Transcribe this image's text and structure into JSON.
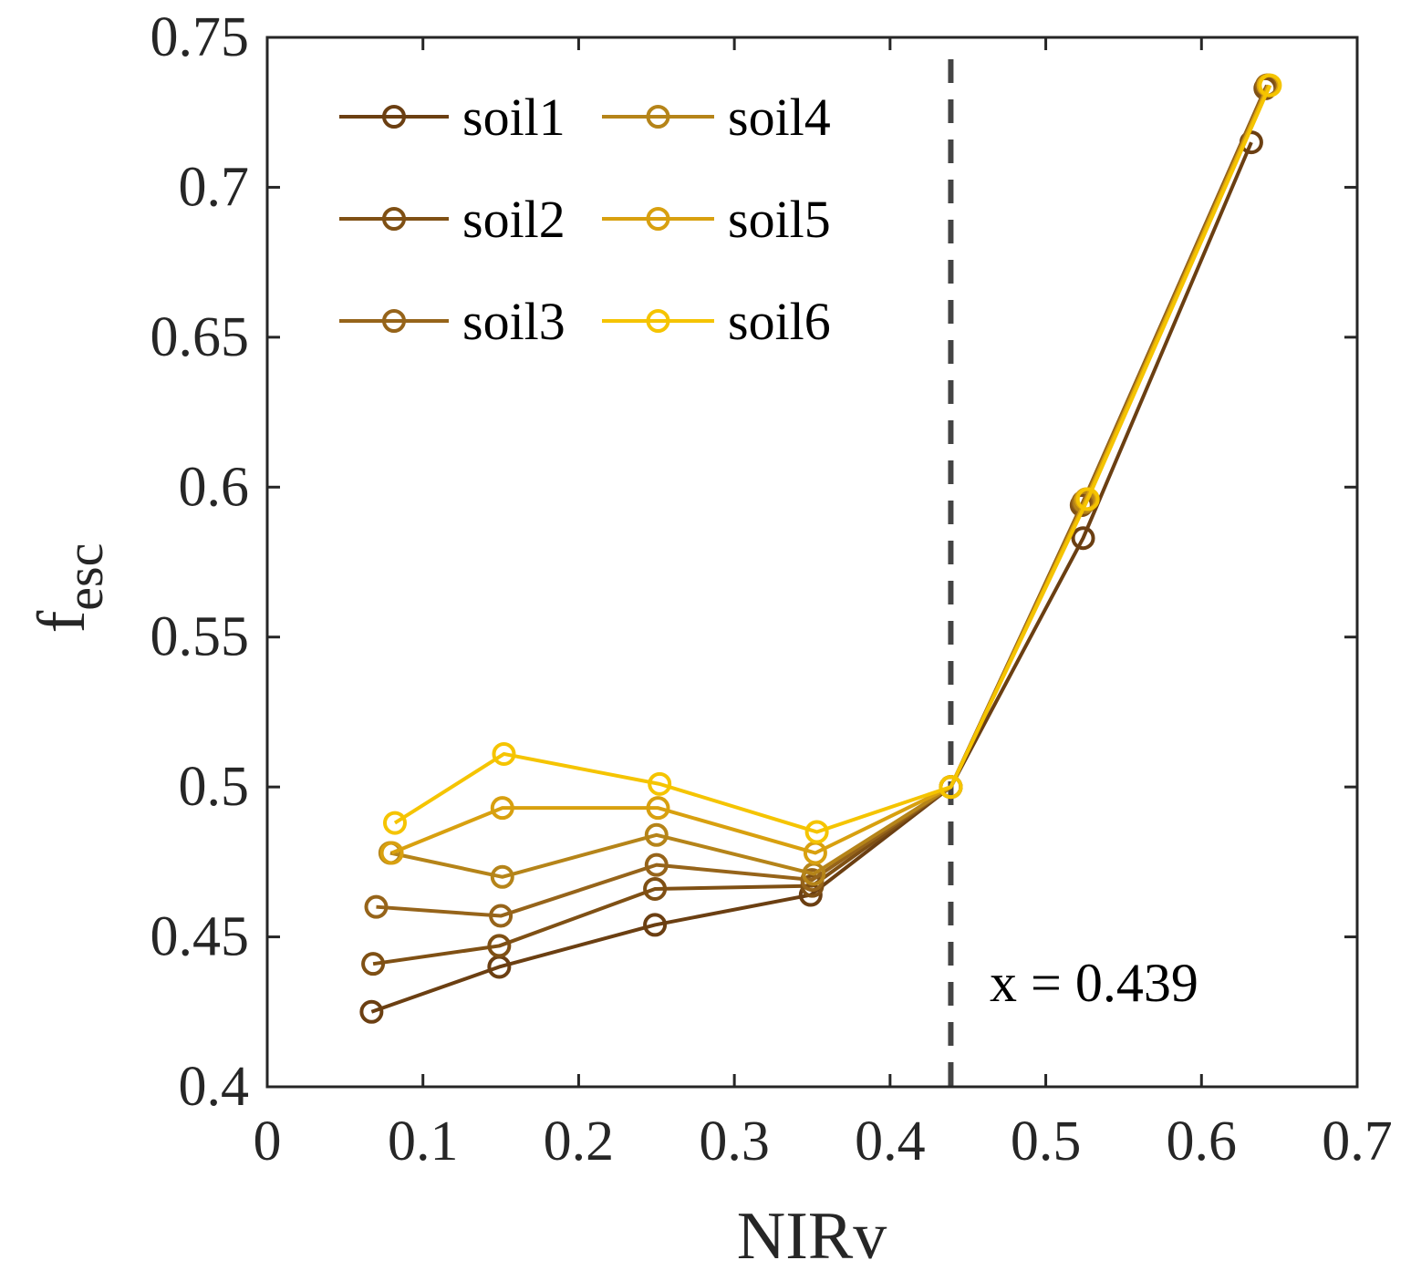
{
  "chart_data": {
    "type": "line",
    "xlabel": "NIRv",
    "ylabel": "f",
    "ylabel_sub": "esc",
    "xlim": [
      0,
      0.7
    ],
    "ylim": [
      0.4,
      0.75
    ],
    "x_ticks": [
      0,
      0.1,
      0.2,
      0.3,
      0.4,
      0.5,
      0.6,
      0.7
    ],
    "x_tick_labels": [
      "0",
      "0.1",
      "0.2",
      "0.3",
      "0.4",
      "0.5",
      "0.6",
      "0.7"
    ],
    "y_ticks": [
      0.4,
      0.45,
      0.5,
      0.55,
      0.6,
      0.65,
      0.7,
      0.75
    ],
    "y_tick_labels": [
      "0.4",
      "0.45",
      "0.5",
      "0.55",
      "0.6",
      "0.65",
      "0.7",
      "0.75"
    ],
    "grid": false,
    "legend_position": "top-left",
    "vline": {
      "x": 0.439,
      "label": "x = 0.439",
      "color": "#444444",
      "style": "dashed"
    },
    "series": [
      {
        "name": "soil1",
        "color": "#6b3f12",
        "x": [
          0.067,
          0.149,
          0.249,
          0.349,
          0.439,
          0.524,
          0.632
        ],
        "y": [
          0.425,
          0.44,
          0.454,
          0.464,
          0.5,
          0.583,
          0.715
        ]
      },
      {
        "name": "soil2",
        "color": "#7f5014",
        "x": [
          0.068,
          0.149,
          0.249,
          0.35,
          0.439,
          0.523,
          0.641
        ],
        "y": [
          0.441,
          0.447,
          0.466,
          0.467,
          0.5,
          0.594,
          0.733
        ]
      },
      {
        "name": "soil3",
        "color": "#96641a",
        "x": [
          0.07,
          0.15,
          0.25,
          0.35,
          0.439,
          0.524,
          0.642
        ],
        "y": [
          0.46,
          0.457,
          0.474,
          0.469,
          0.5,
          0.595,
          0.734
        ]
      },
      {
        "name": "soil4",
        "color": "#b58419",
        "x": [
          0.079,
          0.151,
          0.25,
          0.351,
          0.439,
          0.525,
          0.643
        ],
        "y": [
          0.478,
          0.47,
          0.484,
          0.471,
          0.5,
          0.595,
          0.734
        ]
      },
      {
        "name": "soil5",
        "color": "#d8a00f",
        "x": [
          0.08,
          0.151,
          0.251,
          0.352,
          0.439,
          0.526,
          0.643
        ],
        "y": [
          0.478,
          0.493,
          0.493,
          0.478,
          0.5,
          0.596,
          0.734
        ]
      },
      {
        "name": "soil6",
        "color": "#f5c400",
        "x": [
          0.082,
          0.152,
          0.252,
          0.353,
          0.439,
          0.527,
          0.644
        ],
        "y": [
          0.488,
          0.511,
          0.501,
          0.485,
          0.5,
          0.596,
          0.734
        ]
      }
    ]
  }
}
